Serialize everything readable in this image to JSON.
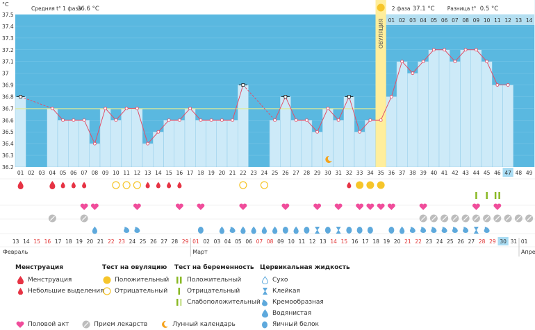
{
  "chart_data": {
    "type": "line",
    "title": "",
    "ylabel": "°C",
    "ylim": [
      36.2,
      37.5
    ],
    "y_ticks": [
      "37.5",
      "37.4",
      "37.3",
      "37.2",
      "37.1",
      "37",
      "36.9",
      "36.8",
      "36.7",
      "36.6",
      "36.5",
      "36.4",
      "36.3",
      "36.2"
    ],
    "cycle_days": [
      "01",
      "02",
      "03",
      "04",
      "05",
      "06",
      "07",
      "08",
      "09",
      "10",
      "11",
      "12",
      "13",
      "14",
      "15",
      "16",
      "17",
      "18",
      "19",
      "20",
      "21",
      "22",
      "23",
      "24",
      "25",
      "26",
      "27",
      "28",
      "29",
      "30",
      "31",
      "32",
      "33",
      "34",
      "35",
      "36",
      "37",
      "38",
      "39",
      "40",
      "41",
      "42",
      "43",
      "44",
      "45",
      "46",
      "47",
      "48",
      "49"
    ],
    "temperatures": [
      36.8,
      null,
      null,
      36.7,
      36.6,
      36.6,
      36.6,
      36.4,
      36.7,
      36.6,
      36.7,
      36.7,
      36.4,
      36.5,
      36.6,
      36.6,
      36.7,
      36.6,
      36.6,
      36.6,
      36.6,
      36.9,
      null,
      null,
      36.6,
      36.8,
      36.6,
      36.6,
      36.5,
      36.7,
      36.6,
      36.8,
      36.5,
      36.6,
      36.6,
      36.8,
      37.1,
      37.0,
      37.1,
      37.2,
      37.2,
      37.1,
      37.2,
      37.2,
      37.1,
      36.9,
      36.9,
      null,
      null
    ],
    "excluded_points_days": [
      "01",
      "22",
      "26",
      "32"
    ],
    "phase1_label": "Средняя t° 1 фаза",
    "phase1_value": "36.6 °C",
    "phase2_label": "2 фаза",
    "phase2_value": "37.1 °C",
    "diff_label": "Разница t°",
    "diff_value": "0.5 °C",
    "ovulation_label": "ОВУЛЯЦИЯ",
    "ovulation_day": "35",
    "phase2_day_labels": [
      "01",
      "02",
      "03",
      "04",
      "05",
      "06",
      "07",
      "08",
      "09",
      "10",
      "11",
      "12",
      "13",
      "14"
    ],
    "current_day": "47"
  },
  "date_row": [
    "13",
    "14",
    "15",
    "16",
    "17",
    "18",
    "19",
    "20",
    "21",
    "22",
    "23",
    "24",
    "25",
    "26",
    "27",
    "28",
    "29",
    "01",
    "02",
    "03",
    "04",
    "05",
    "06",
    "07",
    "08",
    "09",
    "10",
    "11",
    "12",
    "13",
    "14",
    "15",
    "16",
    "17",
    "18",
    "19",
    "20",
    "21",
    "22",
    "23",
    "24",
    "25",
    "26",
    "27",
    "28",
    "29",
    "30",
    "31",
    "01"
  ],
  "red_dates": [
    "15",
    "16",
    "22",
    "23",
    "29",
    "01",
    "07",
    "08",
    "14",
    "15",
    "21",
    "22",
    "28",
    "29"
  ],
  "months": [
    "Февраль",
    "Март",
    "Апре"
  ],
  "markers": {
    "menstruation_big": [
      "01",
      "04"
    ],
    "menstruation_small": [
      "05",
      "06",
      "07",
      "13",
      "14",
      "15",
      "16",
      "32"
    ],
    "ovulation_test_positive": [
      "33",
      "34",
      "35"
    ],
    "ovulation_test_negative": [
      "10",
      "11",
      "12",
      "22",
      "24"
    ],
    "pregnancy_positive": [
      "46"
    ],
    "pregnancy_negative": [
      "44",
      "45"
    ],
    "intercourse": [
      "07",
      "08",
      "12",
      "16",
      "18",
      "22",
      "26",
      "29",
      "31",
      "33",
      "34",
      "35",
      "36",
      "39",
      "44",
      "46"
    ],
    "medication": [
      "04",
      "07",
      "39",
      "40",
      "41",
      "42",
      "43",
      "44",
      "45",
      "46",
      "47",
      "48",
      "49"
    ],
    "cervical": {
      "08": "water",
      "11": "cream",
      "12": "cream",
      "18": "egg",
      "20": "water",
      "21": "cream",
      "22": "water",
      "23": "water",
      "24": "water",
      "25": "water",
      "26": "egg",
      "27": "water",
      "28": "egg",
      "29": "sticky",
      "30": "egg",
      "31": "sticky",
      "32": "egg",
      "33": "egg",
      "34": "egg",
      "36": "egg",
      "37": "water",
      "38": "cream",
      "39": "cream",
      "40": "cream",
      "41": "cream",
      "42": "cream",
      "43": "cream",
      "44": "sticky",
      "45": "cream"
    }
  },
  "legend": {
    "menstruation": {
      "title": "Менструация",
      "items": [
        "Менструация",
        "Небольшие выделения"
      ]
    },
    "ovulation_test": {
      "title": "Тест на овуляцию",
      "items": [
        "Положительный",
        "Отрицательный"
      ]
    },
    "pregnancy_test": {
      "title": "Тест на беременность",
      "items": [
        "Положительный",
        "Отрицательный",
        "Слабоположительный"
      ]
    },
    "cervical": {
      "title": "Цервикальная жидкость",
      "items": [
        "Сухо",
        "Клейкая",
        "Кремообразная",
        "Водянистая",
        "Яичный белок"
      ]
    },
    "bottom": [
      "Половой акт",
      "Прием лекарств",
      "Лунный календарь"
    ]
  },
  "colors": {
    "bar": "#cdeaf8",
    "bar_border": "#8fcbe8",
    "bg": "#5ab8e0",
    "line": "#e0506a",
    "ovulation": "#ffee9c",
    "menstruation": "#e63344",
    "intercourse": "#f04d9b",
    "water": "#5ea9dc",
    "ovulation_test": "#f6c52a",
    "pregnancy": "#8ab925",
    "medication": "#bdbdbd",
    "moon": "#f5a21b"
  }
}
